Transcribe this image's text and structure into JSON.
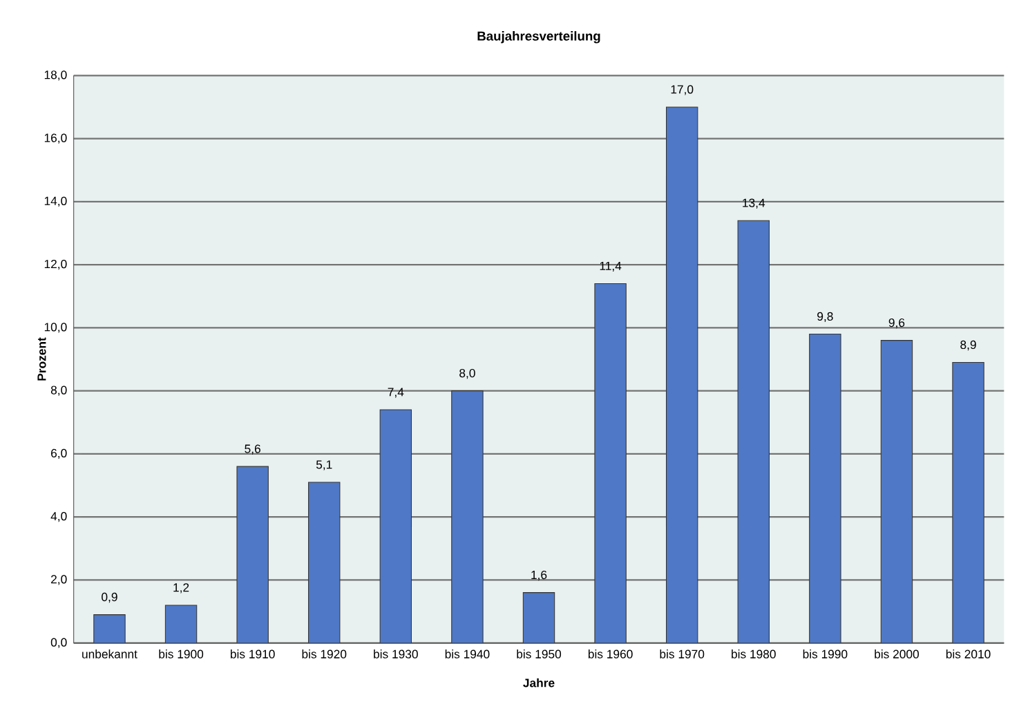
{
  "chart_data": {
    "type": "bar",
    "title": "Baujahresverteilung",
    "xlabel": "Jahre",
    "ylabel": "Prozent",
    "categories": [
      "unbekannt",
      "bis 1900",
      "bis 1910",
      "bis 1920",
      "bis 1930",
      "bis 1940",
      "bis 1950",
      "bis 1960",
      "bis 1970",
      "bis 1980",
      "bis 1990",
      "bis 2000",
      "bis 2010"
    ],
    "values": [
      0.9,
      1.2,
      5.6,
      5.1,
      7.4,
      8.0,
      1.6,
      11.4,
      17.0,
      13.4,
      9.8,
      9.6,
      8.9
    ],
    "value_labels": [
      "0,9",
      "1,2",
      "5,6",
      "5,1",
      "7,4",
      "8,0",
      "1,6",
      "11,4",
      "17,0",
      "13,4",
      "9,8",
      "9,6",
      "8,9"
    ],
    "color": "#4f79c6",
    "ylim": [
      0,
      18
    ],
    "yticks": [
      {
        "value": 0,
        "label": "0,0"
      },
      {
        "value": 2,
        "label": "2,0"
      },
      {
        "value": 4,
        "label": "4,0"
      },
      {
        "value": 6,
        "label": "6,0"
      },
      {
        "value": 8,
        "label": "8,0"
      },
      {
        "value": 10,
        "label": "10,0"
      },
      {
        "value": 12,
        "label": "12,0"
      },
      {
        "value": 14,
        "label": "14,0"
      },
      {
        "value": 16,
        "label": "16,0"
      },
      {
        "value": 18,
        "label": "18,0"
      }
    ],
    "grid": "y"
  }
}
